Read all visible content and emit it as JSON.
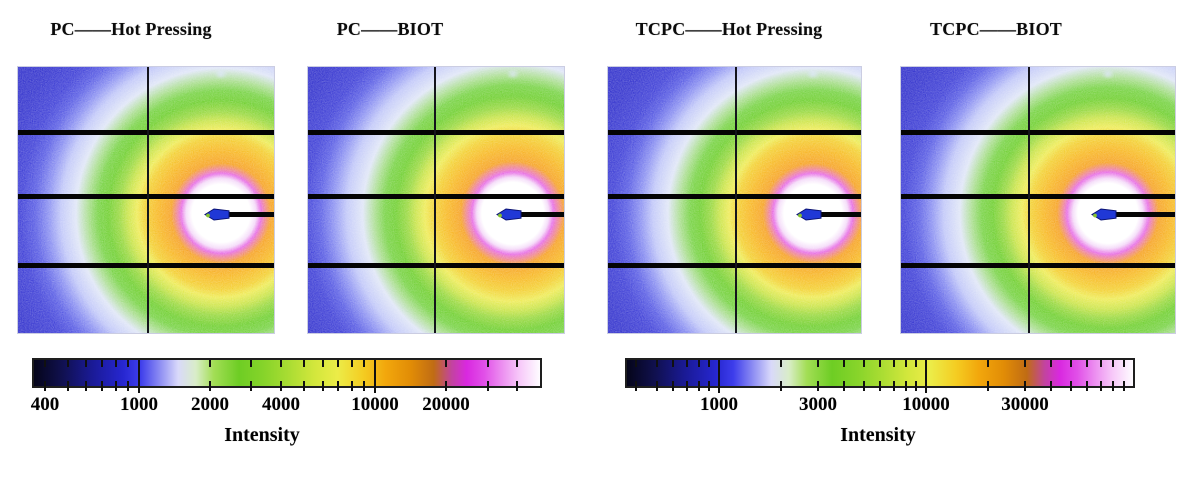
{
  "chart_data": {
    "type": "heatmap",
    "description": "Four 2D X-ray scattering intensity patterns (detector images) with isotropic diffraction rings, detector module gaps and a beamstop arm; two logarithmic intensity colorbars below.",
    "panels": [
      {
        "title": "PC——Hot Pressing"
      },
      {
        "title": "PC——BIOT"
      },
      {
        "title": "TCPC——Hot Pressing"
      },
      {
        "title": "TCPC——BIOT"
      }
    ],
    "pattern": {
      "features": {
        "detector_gaps": "three horizontal black module gaps and one thin vertical gap",
        "beam_stop": "black horizontal arm from right edge ending in a blue arrow marker at the beam center",
        "top_spot": "faint pale reflection spot near top edge above beam center"
      },
      "ring_stops": [
        {
          "r": 0.0,
          "color": "#ffffff"
        },
        {
          "r": 0.115,
          "color": "#ffffff"
        },
        {
          "r": 0.135,
          "color": "#f3d7f8"
        },
        {
          "r": 0.155,
          "color": "#e55fe2"
        },
        {
          "r": 0.175,
          "color": "#ee7e7a"
        },
        {
          "r": 0.195,
          "color": "#f59a12"
        },
        {
          "r": 0.245,
          "color": "#f7b110"
        },
        {
          "r": 0.295,
          "color": "#f2cc20"
        },
        {
          "r": 0.33,
          "color": "#edea48"
        },
        {
          "r": 0.365,
          "color": "#c6e23a"
        },
        {
          "r": 0.4,
          "color": "#8fd52f"
        },
        {
          "r": 0.44,
          "color": "#63cb1e"
        },
        {
          "r": 0.48,
          "color": "#6ccf35"
        },
        {
          "r": 0.52,
          "color": "#a2db85"
        },
        {
          "r": 0.565,
          "color": "#dde4f6"
        },
        {
          "r": 0.625,
          "color": "#bcc3f8"
        },
        {
          "r": 0.675,
          "color": "#7e84f0"
        },
        {
          "r": 0.725,
          "color": "#4a4ee2"
        },
        {
          "r": 0.78,
          "color": "#2e2fd4"
        },
        {
          "r": 0.88,
          "color": "#2121c9"
        },
        {
          "r": 1.0,
          "color": "#1d1dc5"
        }
      ]
    },
    "colorbars": [
      {
        "label": "Intensity",
        "scale": "log",
        "range": [
          360,
          50000
        ],
        "labeled_ticks": [
          400,
          1000,
          2000,
          4000,
          10000,
          20000
        ],
        "decade_ticks": [
          1000,
          10000
        ],
        "minor_ticks": [
          500,
          600,
          700,
          800,
          900,
          3000,
          5000,
          6000,
          7000,
          8000,
          9000,
          30000,
          40000
        ],
        "applies_to": [
          "PC——Hot Pressing",
          "PC——BIOT"
        ]
      },
      {
        "label": "Intensity",
        "scale": "log",
        "range": [
          360,
          100000
        ],
        "labeled_ticks": [
          1000,
          3000,
          10000,
          30000
        ],
        "decade_ticks": [
          1000,
          10000
        ],
        "minor_ticks": [
          400,
          500,
          600,
          700,
          800,
          900,
          2000,
          4000,
          5000,
          6000,
          7000,
          8000,
          9000,
          20000,
          40000,
          50000,
          60000,
          70000,
          80000,
          90000
        ],
        "applies_to": [
          "TCPC——Hot Pressing",
          "TCPC——BIOT"
        ]
      }
    ],
    "colormap": [
      {
        "pos": 0.0,
        "color": "#05051a"
      },
      {
        "pos": 0.055,
        "color": "#10104e"
      },
      {
        "pos": 0.115,
        "color": "#1a1a96"
      },
      {
        "pos": 0.175,
        "color": "#2626cf"
      },
      {
        "pos": 0.21,
        "color": "#3d3deb"
      },
      {
        "pos": 0.245,
        "color": "#8585f2"
      },
      {
        "pos": 0.285,
        "color": "#d9d9fa"
      },
      {
        "pos": 0.32,
        "color": "#d9edc8"
      },
      {
        "pos": 0.355,
        "color": "#a3de56"
      },
      {
        "pos": 0.405,
        "color": "#6ecd24"
      },
      {
        "pos": 0.455,
        "color": "#87d42a"
      },
      {
        "pos": 0.505,
        "color": "#abdd33"
      },
      {
        "pos": 0.555,
        "color": "#d3e73c"
      },
      {
        "pos": 0.6,
        "color": "#ecec48"
      },
      {
        "pos": 0.65,
        "color": "#f4cd22"
      },
      {
        "pos": 0.695,
        "color": "#f2a70c"
      },
      {
        "pos": 0.745,
        "color": "#e18c06"
      },
      {
        "pos": 0.79,
        "color": "#c06c14"
      },
      {
        "pos": 0.825,
        "color": "#c2449e"
      },
      {
        "pos": 0.855,
        "color": "#d928e0"
      },
      {
        "pos": 0.89,
        "color": "#e150e8"
      },
      {
        "pos": 0.925,
        "color": "#ec8ff0"
      },
      {
        "pos": 0.96,
        "color": "#f7c9f9"
      },
      {
        "pos": 1.0,
        "color": "#fefcff"
      }
    ]
  }
}
